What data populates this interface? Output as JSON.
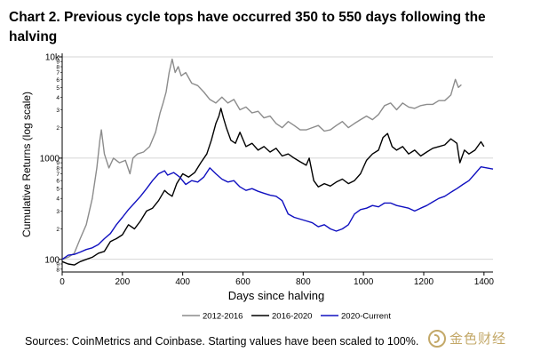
{
  "title": "Chart 2. Previous cycle tops have occurred 350 to 550 days following the halving",
  "source": "Sources: CoinMetrics and Coinbase. Starting values have been scaled to 100%.",
  "watermark": "金色财经",
  "colors": {
    "s2012": "#8c8c8c",
    "s2016": "#000000",
    "s2020": "#1010c0",
    "grid": "#c8c8c8"
  },
  "chart_data": {
    "type": "line",
    "title": "Chart 2. Previous cycle tops have occurred 350 to 550 days following the halving",
    "xlabel": "Days since halving",
    "ylabel": "Cumulative Returns (log scale)",
    "y_scale": "log",
    "xlim": [
      0,
      1430
    ],
    "ylim": [
      75,
      10000
    ],
    "x_ticks": [
      0,
      200,
      400,
      600,
      800,
      1000,
      1200,
      1400
    ],
    "y_major_ticks": [
      {
        "value": 100,
        "label": "100"
      },
      {
        "value": 1000,
        "label": "1000"
      },
      {
        "value": 10000,
        "label": "10k"
      }
    ],
    "y_minor_ticks": [
      {
        "value": 80,
        "label": "8"
      },
      {
        "value": 90,
        "label": "9"
      },
      {
        "value": 200,
        "label": "2"
      },
      {
        "value": 300,
        "label": "3"
      },
      {
        "value": 400,
        "label": "4"
      },
      {
        "value": 500,
        "label": "5"
      },
      {
        "value": 600,
        "label": "6"
      },
      {
        "value": 700,
        "label": "7"
      },
      {
        "value": 800,
        "label": "8"
      },
      {
        "value": 900,
        "label": "9"
      },
      {
        "value": 2000,
        "label": "2"
      },
      {
        "value": 3000,
        "label": "3"
      },
      {
        "value": 4000,
        "label": "4"
      },
      {
        "value": 5000,
        "label": "5"
      },
      {
        "value": 6000,
        "label": "6"
      },
      {
        "value": 7000,
        "label": "7"
      },
      {
        "value": 8000,
        "label": "8"
      },
      {
        "value": 9000,
        "label": "9"
      }
    ],
    "grid": "horizontal",
    "legend_position": "bottom-center",
    "series": [
      {
        "name": "2012-2016",
        "color": "#8c8c8c",
        "points": [
          [
            0,
            100
          ],
          [
            20,
            105
          ],
          [
            40,
            115
          ],
          [
            60,
            160
          ],
          [
            80,
            220
          ],
          [
            100,
            400
          ],
          [
            115,
            800
          ],
          [
            125,
            1500
          ],
          [
            130,
            1900
          ],
          [
            140,
            1100
          ],
          [
            155,
            800
          ],
          [
            170,
            1000
          ],
          [
            190,
            900
          ],
          [
            210,
            950
          ],
          [
            225,
            700
          ],
          [
            235,
            1000
          ],
          [
            250,
            1100
          ],
          [
            270,
            1150
          ],
          [
            290,
            1300
          ],
          [
            310,
            1800
          ],
          [
            325,
            2800
          ],
          [
            335,
            3500
          ],
          [
            345,
            4500
          ],
          [
            355,
            7000
          ],
          [
            365,
            9500
          ],
          [
            375,
            7000
          ],
          [
            385,
            8000
          ],
          [
            395,
            6500
          ],
          [
            410,
            7000
          ],
          [
            430,
            5500
          ],
          [
            450,
            5200
          ],
          [
            470,
            4500
          ],
          [
            490,
            3800
          ],
          [
            510,
            3500
          ],
          [
            530,
            4000
          ],
          [
            550,
            3500
          ],
          [
            570,
            3800
          ],
          [
            590,
            3000
          ],
          [
            610,
            3200
          ],
          [
            630,
            2800
          ],
          [
            650,
            2900
          ],
          [
            670,
            2500
          ],
          [
            690,
            2600
          ],
          [
            710,
            2200
          ],
          [
            730,
            2000
          ],
          [
            750,
            2300
          ],
          [
            770,
            2100
          ],
          [
            790,
            1900
          ],
          [
            810,
            1900
          ],
          [
            830,
            2000
          ],
          [
            850,
            2100
          ],
          [
            870,
            1850
          ],
          [
            890,
            1900
          ],
          [
            910,
            2100
          ],
          [
            930,
            2300
          ],
          [
            950,
            2000
          ],
          [
            970,
            2200
          ],
          [
            990,
            2400
          ],
          [
            1010,
            2600
          ],
          [
            1030,
            2400
          ],
          [
            1050,
            2700
          ],
          [
            1070,
            3300
          ],
          [
            1090,
            3500
          ],
          [
            1110,
            3000
          ],
          [
            1130,
            3500
          ],
          [
            1150,
            3200
          ],
          [
            1170,
            3100
          ],
          [
            1190,
            3300
          ],
          [
            1210,
            3400
          ],
          [
            1230,
            3400
          ],
          [
            1250,
            3700
          ],
          [
            1270,
            3700
          ],
          [
            1290,
            4200
          ],
          [
            1305,
            6000
          ],
          [
            1315,
            5000
          ],
          [
            1325,
            5300
          ]
        ]
      },
      {
        "name": "2016-2020",
        "color": "#000000",
        "points": [
          [
            0,
            95
          ],
          [
            20,
            90
          ],
          [
            40,
            88
          ],
          [
            60,
            95
          ],
          [
            80,
            100
          ],
          [
            100,
            105
          ],
          [
            120,
            115
          ],
          [
            140,
            120
          ],
          [
            160,
            150
          ],
          [
            180,
            160
          ],
          [
            200,
            175
          ],
          [
            220,
            220
          ],
          [
            240,
            200
          ],
          [
            260,
            240
          ],
          [
            280,
            300
          ],
          [
            300,
            320
          ],
          [
            320,
            380
          ],
          [
            340,
            480
          ],
          [
            350,
            450
          ],
          [
            365,
            420
          ],
          [
            380,
            560
          ],
          [
            400,
            700
          ],
          [
            420,
            650
          ],
          [
            440,
            720
          ],
          [
            460,
            900
          ],
          [
            480,
            1100
          ],
          [
            495,
            1500
          ],
          [
            510,
            2200
          ],
          [
            520,
            2600
          ],
          [
            527,
            3100
          ],
          [
            535,
            2500
          ],
          [
            545,
            2000
          ],
          [
            560,
            1500
          ],
          [
            575,
            1400
          ],
          [
            590,
            1800
          ],
          [
            610,
            1300
          ],
          [
            630,
            1400
          ],
          [
            650,
            1200
          ],
          [
            670,
            1300
          ],
          [
            690,
            1150
          ],
          [
            710,
            1250
          ],
          [
            730,
            1050
          ],
          [
            750,
            1100
          ],
          [
            770,
            1000
          ],
          [
            790,
            920
          ],
          [
            810,
            850
          ],
          [
            820,
            1000
          ],
          [
            835,
            600
          ],
          [
            850,
            520
          ],
          [
            870,
            560
          ],
          [
            890,
            530
          ],
          [
            910,
            580
          ],
          [
            930,
            620
          ],
          [
            950,
            560
          ],
          [
            970,
            600
          ],
          [
            990,
            700
          ],
          [
            1010,
            950
          ],
          [
            1030,
            1100
          ],
          [
            1050,
            1200
          ],
          [
            1065,
            1600
          ],
          [
            1080,
            1750
          ],
          [
            1095,
            1300
          ],
          [
            1110,
            1200
          ],
          [
            1130,
            1300
          ],
          [
            1150,
            1100
          ],
          [
            1170,
            1200
          ],
          [
            1190,
            1050
          ],
          [
            1210,
            1150
          ],
          [
            1230,
            1250
          ],
          [
            1250,
            1300
          ],
          [
            1270,
            1350
          ],
          [
            1290,
            1550
          ],
          [
            1310,
            1400
          ],
          [
            1320,
            900
          ],
          [
            1335,
            1200
          ],
          [
            1350,
            1100
          ],
          [
            1370,
            1200
          ],
          [
            1390,
            1450
          ],
          [
            1400,
            1300
          ]
        ]
      },
      {
        "name": "2020-Current",
        "color": "#1010c0",
        "points": [
          [
            0,
            100
          ],
          [
            20,
            110
          ],
          [
            40,
            112
          ],
          [
            60,
            118
          ],
          [
            80,
            125
          ],
          [
            100,
            130
          ],
          [
            120,
            140
          ],
          [
            140,
            160
          ],
          [
            160,
            180
          ],
          [
            180,
            220
          ],
          [
            200,
            260
          ],
          [
            220,
            310
          ],
          [
            240,
            360
          ],
          [
            260,
            420
          ],
          [
            280,
            500
          ],
          [
            300,
            600
          ],
          [
            320,
            700
          ],
          [
            340,
            750
          ],
          [
            350,
            680
          ],
          [
            370,
            720
          ],
          [
            390,
            650
          ],
          [
            410,
            550
          ],
          [
            430,
            600
          ],
          [
            450,
            580
          ],
          [
            470,
            650
          ],
          [
            490,
            800
          ],
          [
            510,
            700
          ],
          [
            530,
            620
          ],
          [
            550,
            580
          ],
          [
            570,
            600
          ],
          [
            590,
            520
          ],
          [
            610,
            480
          ],
          [
            630,
            500
          ],
          [
            650,
            470
          ],
          [
            670,
            450
          ],
          [
            690,
            430
          ],
          [
            710,
            420
          ],
          [
            730,
            380
          ],
          [
            750,
            280
          ],
          [
            770,
            260
          ],
          [
            790,
            250
          ],
          [
            810,
            240
          ],
          [
            830,
            230
          ],
          [
            850,
            210
          ],
          [
            870,
            220
          ],
          [
            890,
            200
          ],
          [
            910,
            190
          ],
          [
            930,
            200
          ],
          [
            950,
            220
          ],
          [
            970,
            280
          ],
          [
            990,
            310
          ],
          [
            1010,
            320
          ],
          [
            1030,
            340
          ],
          [
            1050,
            330
          ],
          [
            1070,
            360
          ],
          [
            1090,
            360
          ],
          [
            1110,
            340
          ],
          [
            1130,
            330
          ],
          [
            1150,
            320
          ],
          [
            1170,
            300
          ],
          [
            1190,
            320
          ],
          [
            1210,
            340
          ],
          [
            1230,
            370
          ],
          [
            1250,
            400
          ],
          [
            1270,
            420
          ],
          [
            1290,
            460
          ],
          [
            1310,
            500
          ],
          [
            1330,
            550
          ],
          [
            1350,
            600
          ],
          [
            1370,
            700
          ],
          [
            1390,
            820
          ],
          [
            1410,
            800
          ],
          [
            1430,
            780
          ]
        ]
      }
    ]
  }
}
